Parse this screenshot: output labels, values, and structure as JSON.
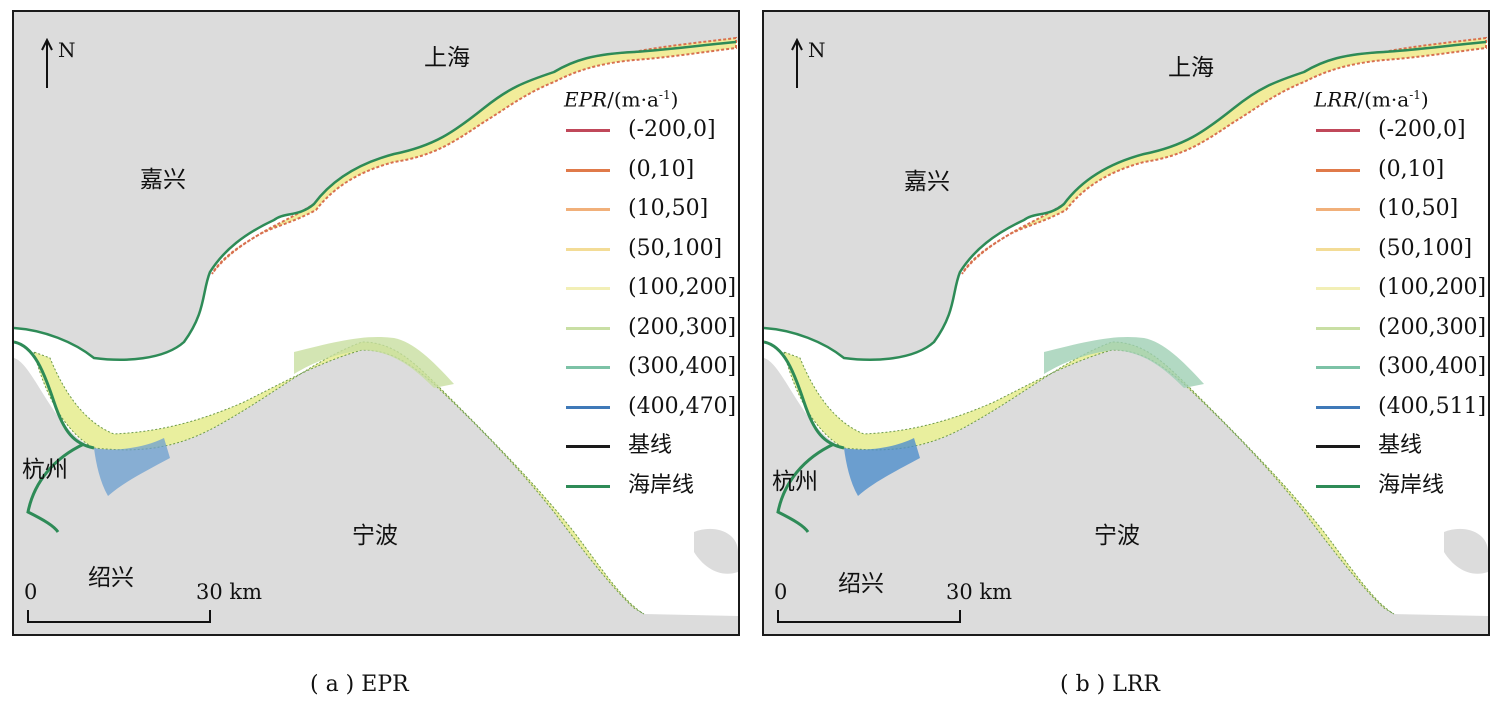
{
  "panels": [
    {
      "caption": "( a ) EPR",
      "north": "N",
      "places": {
        "shanghai": "上海",
        "jiaxing": "嘉兴",
        "hangzhou": "杭州",
        "ningbo": "宁波",
        "shaoxing": "绍兴"
      },
      "legend": {
        "title_italic": "EPR",
        "title_rest": "/(m·a",
        "title_sup": "-1",
        "title_close": ")",
        "items": [
          {
            "label": "(-200,0]",
            "color": "#c0485a"
          },
          {
            "label": "(0,10]",
            "color": "#e07a4a"
          },
          {
            "label": "(10,50]",
            "color": "#f1b07a"
          },
          {
            "label": "(50,100]",
            "color": "#f3dc96"
          },
          {
            "label": "(100,200]",
            "color": "#f2efb6"
          },
          {
            "label": "(200,300]",
            "color": "#c9dfa4"
          },
          {
            "label": "(300,400]",
            "color": "#7cc2a6"
          },
          {
            "label": "(400,470]",
            "color": "#3f79b8"
          },
          {
            "label": "基线",
            "color": "#1a1a1a"
          },
          {
            "label": "海岸线",
            "color": "#2e8b57"
          }
        ]
      },
      "scale": {
        "start": "0",
        "end": "30 km"
      }
    },
    {
      "caption": "( b ) LRR",
      "north": "N",
      "places": {
        "shanghai": "上海",
        "jiaxing": "嘉兴",
        "hangzhou": "杭州",
        "ningbo": "宁波",
        "shaoxing": "绍兴"
      },
      "legend": {
        "title_italic": "LRR",
        "title_rest": "/(m·a",
        "title_sup": "-1",
        "title_close": ")",
        "items": [
          {
            "label": "(-200,0]",
            "color": "#c0485a"
          },
          {
            "label": "(0,10]",
            "color": "#e07a4a"
          },
          {
            "label": "(10,50]",
            "color": "#f1b07a"
          },
          {
            "label": "(50,100]",
            "color": "#f3dc96"
          },
          {
            "label": "(100,200]",
            "color": "#f2efb6"
          },
          {
            "label": "(200,300]",
            "color": "#c9dfa4"
          },
          {
            "label": "(300,400]",
            "color": "#7cc2a6"
          },
          {
            "label": "(400,511]",
            "color": "#3f79b8"
          },
          {
            "label": "基线",
            "color": "#1a1a1a"
          },
          {
            "label": "海岸线",
            "color": "#2e8b57"
          }
        ]
      },
      "scale": {
        "start": "0",
        "end": "30 km"
      }
    }
  ],
  "colors": {
    "land": "#dcdcdc",
    "water": "#ffffff",
    "coastline": "#2e8b57"
  }
}
